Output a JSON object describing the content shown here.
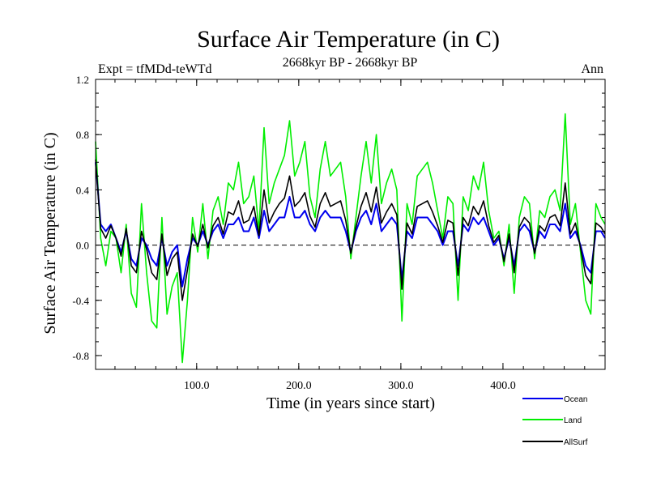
{
  "chart_data": {
    "type": "line",
    "title": "Surface Air Temperature (in C)",
    "subtitle": "2668kyr BP - 2668kyr BP",
    "left_label": "Expt = tfMDd-teWTd",
    "right_label": "Ann",
    "xlabel": "Time (in years since start)",
    "ylabel": "Surface Air Temperature (in C)",
    "xlim": [
      1,
      500
    ],
    "ylim": [
      -0.9,
      1.2
    ],
    "x_ticks": [
      100,
      200,
      300,
      400
    ],
    "x_tick_labels": [
      "100.0",
      "200.0",
      "300.0",
      "400.0"
    ],
    "y_ticks": [
      -0.8,
      -0.4,
      0.0,
      0.4,
      0.8,
      1.2
    ],
    "y_tick_labels": [
      "-0.8",
      "-0.4",
      "0.0",
      "0.4",
      "0.8",
      "1.2"
    ],
    "zero_line": "dashed",
    "legend_position": "bottom-right",
    "series": [
      {
        "name": "Land",
        "color": "#00ee00",
        "x_step": 5,
        "values": [
          0.75,
          0.05,
          -0.15,
          0.1,
          0.05,
          -0.2,
          0.15,
          -0.35,
          -0.45,
          0.3,
          -0.2,
          -0.55,
          -0.6,
          0.2,
          -0.5,
          -0.3,
          -0.2,
          -0.85,
          -0.4,
          0.2,
          -0.05,
          0.3,
          -0.1,
          0.25,
          0.35,
          0.15,
          0.45,
          0.4,
          0.6,
          0.3,
          0.35,
          0.5,
          0.1,
          0.85,
          0.3,
          0.45,
          0.55,
          0.65,
          0.9,
          0.5,
          0.6,
          0.75,
          0.35,
          0.2,
          0.55,
          0.75,
          0.5,
          0.55,
          0.6,
          0.35,
          -0.1,
          0.2,
          0.5,
          0.75,
          0.45,
          0.8,
          0.3,
          0.45,
          0.55,
          0.4,
          -0.55,
          0.3,
          0.15,
          0.5,
          0.55,
          0.6,
          0.45,
          0.25,
          0.05,
          0.35,
          0.3,
          -0.4,
          0.35,
          0.25,
          0.5,
          0.4,
          0.6,
          0.25,
          0.05,
          0.1,
          -0.15,
          0.15,
          -0.35,
          0.2,
          0.35,
          0.3,
          -0.1,
          0.25,
          0.2,
          0.35,
          0.4,
          0.25,
          0.95,
          0.15,
          0.3,
          -0.05,
          -0.4,
          -0.5,
          0.3,
          0.2,
          0.15
        ]
      },
      {
        "name": "Ocean",
        "color": "#0000ee",
        "x_step": 5,
        "values": [
          0.6,
          0.15,
          0.1,
          0.15,
          0.05,
          -0.05,
          0.1,
          -0.1,
          -0.15,
          0.05,
          0.0,
          -0.1,
          -0.15,
          0.05,
          -0.15,
          -0.05,
          0.0,
          -0.3,
          -0.1,
          0.05,
          0.0,
          0.1,
          0.0,
          0.1,
          0.15,
          0.05,
          0.15,
          0.15,
          0.2,
          0.1,
          0.1,
          0.2,
          0.05,
          0.25,
          0.1,
          0.15,
          0.2,
          0.2,
          0.35,
          0.2,
          0.2,
          0.25,
          0.15,
          0.1,
          0.2,
          0.25,
          0.2,
          0.2,
          0.2,
          0.1,
          -0.05,
          0.1,
          0.2,
          0.25,
          0.15,
          0.3,
          0.1,
          0.15,
          0.2,
          0.15,
          -0.25,
          0.1,
          0.05,
          0.2,
          0.2,
          0.2,
          0.15,
          0.1,
          0.0,
          0.1,
          0.1,
          -0.15,
          0.15,
          0.1,
          0.2,
          0.15,
          0.2,
          0.1,
          0.0,
          0.05,
          -0.1,
          0.05,
          -0.15,
          0.1,
          0.15,
          0.1,
          -0.05,
          0.1,
          0.05,
          0.15,
          0.15,
          0.1,
          0.3,
          0.05,
          0.1,
          0.0,
          -0.15,
          -0.2,
          0.1,
          0.1,
          0.05
        ]
      },
      {
        "name": "AllSurf",
        "color": "#000000",
        "x_step": 5,
        "values": [
          0.62,
          0.12,
          0.05,
          0.14,
          0.05,
          -0.08,
          0.12,
          -0.15,
          -0.2,
          0.1,
          -0.03,
          -0.2,
          -0.25,
          0.08,
          -0.22,
          -0.1,
          -0.05,
          -0.4,
          -0.18,
          0.08,
          -0.01,
          0.15,
          -0.02,
          0.14,
          0.2,
          0.08,
          0.24,
          0.22,
          0.32,
          0.16,
          0.18,
          0.28,
          0.07,
          0.4,
          0.16,
          0.24,
          0.3,
          0.34,
          0.5,
          0.28,
          0.32,
          0.38,
          0.21,
          0.13,
          0.3,
          0.38,
          0.28,
          0.3,
          0.32,
          0.18,
          -0.06,
          0.13,
          0.28,
          0.38,
          0.24,
          0.42,
          0.16,
          0.24,
          0.3,
          0.22,
          -0.32,
          0.16,
          0.08,
          0.28,
          0.3,
          0.32,
          0.24,
          0.14,
          0.02,
          0.18,
          0.16,
          -0.22,
          0.2,
          0.14,
          0.28,
          0.22,
          0.32,
          0.14,
          0.02,
          0.07,
          -0.12,
          0.08,
          -0.2,
          0.13,
          0.2,
          0.16,
          -0.06,
          0.14,
          0.1,
          0.2,
          0.22,
          0.14,
          0.45,
          0.08,
          0.16,
          -0.02,
          -0.22,
          -0.28,
          0.16,
          0.13,
          0.08
        ]
      }
    ],
    "legend": [
      {
        "name": "Ocean",
        "color": "#0000ee"
      },
      {
        "name": "Land",
        "color": "#00ee00"
      },
      {
        "name": "AllSurf",
        "color": "#000000"
      }
    ]
  }
}
